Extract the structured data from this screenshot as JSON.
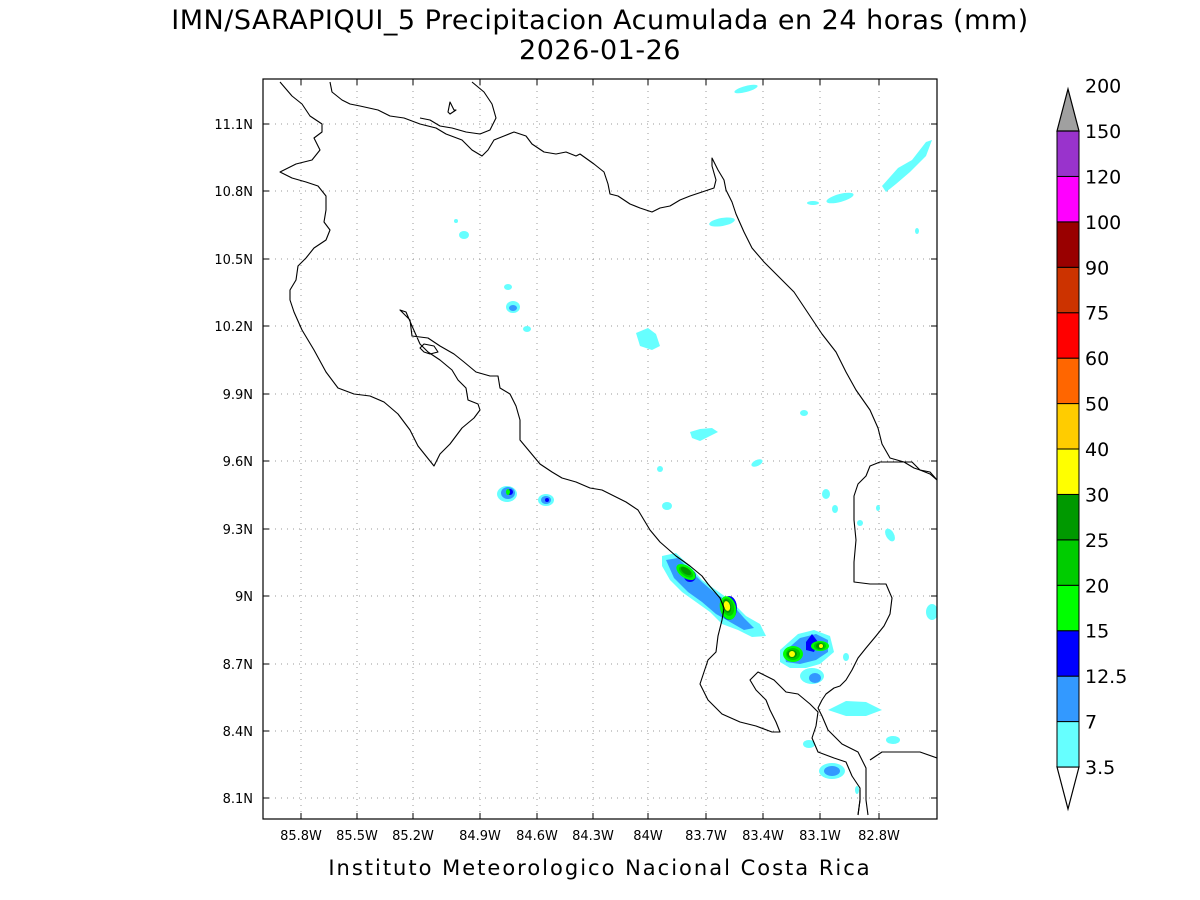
{
  "title_line1": "IMN/SARAPIQUI_5 Precipitacion Acumulada en 24 horas (mm)",
  "title_line2": "2026-01-26",
  "footer": "Instituto Meteorologico Nacional Costa Rica",
  "x_ticks": [
    "85.8W",
    "85.5W",
    "85.2W",
    "84.9W",
    "84.6W",
    "84.3W",
    "84W",
    "83.7W",
    "83.4W",
    "83.1W",
    "82.8W"
  ],
  "y_ticks": [
    "11.1N",
    "10.8N",
    "10.5N",
    "10.2N",
    "9.9N",
    "9.6N",
    "9.3N",
    "9N",
    "8.7N",
    "8.4N",
    "8.1N"
  ],
  "legend": {
    "labels": [
      "3.5",
      "7",
      "12.5",
      "15",
      "20",
      "25",
      "30",
      "40",
      "50",
      "60",
      "75",
      "90",
      "100",
      "120",
      "150",
      "200"
    ],
    "colors": [
      "#66ffff",
      "#3399ff",
      "#0000ff",
      "#00ff00",
      "#00cc00",
      "#009900",
      "#ffff00",
      "#ffcc00",
      "#ff6600",
      "#ff0000",
      "#cc3300",
      "#990000",
      "#ff00ff",
      "#9933cc",
      "#f2f2f2",
      "#a0a0a0"
    ]
  }
}
